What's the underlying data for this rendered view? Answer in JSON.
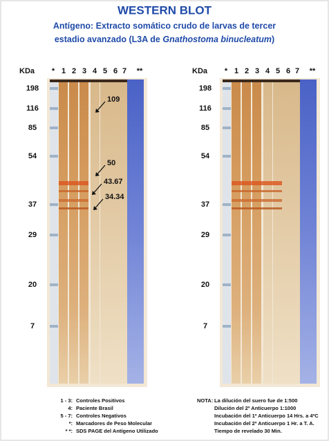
{
  "title": "WESTERN BLOT",
  "subtitle": {
    "line1": "Antígeno: Extracto somático crudo de larvas de tercer",
    "line2_start": "estadio avanzado (L3A de ",
    "line2_italic": "Gnathostoma binucleatum",
    "line2_end": ")"
  },
  "panels": [
    {
      "unit": "KDa",
      "lanes": [
        "*",
        "1",
        "2",
        "3",
        "4",
        "5",
        "6",
        "7",
        "**"
      ],
      "markers": [
        "198",
        "116",
        "85",
        "54",
        "37",
        "29",
        "20",
        "7"
      ],
      "annotations": [
        "109",
        "50",
        "43.67",
        "34.34"
      ]
    },
    {
      "unit": "KDa",
      "lanes": [
        "*",
        "1",
        "2",
        "3",
        "4",
        "5",
        "6",
        "7",
        "**"
      ],
      "markers": [
        "198",
        "116",
        "85",
        "54",
        "37",
        "29",
        "20",
        "7"
      ]
    }
  ],
  "legend": [
    [
      "1 - 3:",
      "Controles Positivos"
    ],
    [
      "4:",
      "Paciente Brasil"
    ],
    [
      "5 - 7:",
      "Controles Negativos"
    ],
    [
      "*:",
      "Marcadores de Peso Molecular"
    ],
    [
      "* *:",
      "SDS PAGE del Antígeno Utilizado"
    ]
  ],
  "note": {
    "label": "NOTA:",
    "lines": [
      "La dilución del suero fue de 1:500",
      "Dilución del 2º Anticuerpo 1:1000",
      "Incubación del 1º Anticuerpo 14 Hrs. a 4ºC",
      "Incubación del 2º Anticuerpo  1 Hr. a T. A.",
      "Tiempo de revelado 30 Min."
    ]
  }
}
